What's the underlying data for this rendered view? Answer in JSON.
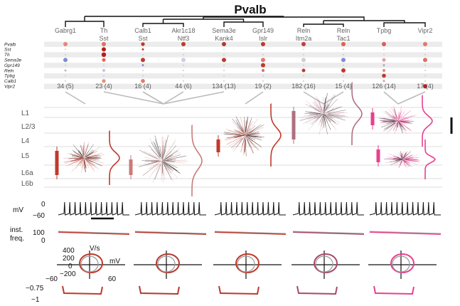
{
  "title": "Pvalb",
  "clusters": [
    {
      "l1": "Gabrg1",
      "l2": "",
      "count": "34 (5)",
      "color": "#d98880"
    },
    {
      "l1": "Th",
      "l2": "Sst",
      "count": "23 (4)",
      "color": "#c0392b"
    },
    {
      "l1": "Calb1",
      "l2": "Sst",
      "count": "16 (4)",
      "color": "#b03a2e"
    },
    {
      "l1": "Akr1c18",
      "l2": "Ntf3",
      "count": "44 (6)",
      "color": "#a93226"
    },
    {
      "l1": "Sema3e",
      "l2": "Kank4",
      "count": "134 (13)",
      "color": "#c0392b"
    },
    {
      "l1": "Gpr149",
      "l2": "Islr",
      "count": "19 (2)",
      "color": "#cb4335"
    },
    {
      "l1": "Reln",
      "l2": "Itm2a",
      "count": "182 (16)",
      "color": "#a84a6a"
    },
    {
      "l1": "Reln",
      "l2": "Tac1",
      "count": "15 (4)",
      "color": "#b5406e"
    },
    {
      "l1": "Tpbg",
      "l2": "",
      "count": "126 (14)",
      "color": "#d6337a"
    },
    {
      "l1": "Vipr2",
      "l2": "",
      "count": "17 (4)",
      "color": "#e8408f"
    }
  ],
  "genes": [
    "Pvalb",
    "Sst",
    "Th",
    "Sema3e",
    "Gpr149",
    "Reln",
    "Tpbg",
    "Calb1",
    "Vipr2"
  ],
  "layers": [
    "L1",
    "L2/3",
    "L4",
    "L5",
    "L6a",
    "L6b"
  ],
  "ephys": {
    "mv_label": "mV",
    "mv_ticks": [
      "0",
      "−60"
    ],
    "freq_label_1": "inst.",
    "freq_label_2": "freq.",
    "freq_tick": "100",
    "freq_tick2": "0",
    "phase_y_label": "V/s",
    "phase_y_ticks": [
      "400",
      "200",
      "0",
      "−200"
    ],
    "phase_x_label": "mV",
    "phase_x_ticks": [
      "−60",
      "60"
    ],
    "ap_ticks": [
      "−0.75",
      "−1"
    ]
  },
  "colors": {
    "red": "#c0392b",
    "pink": "#e8408f",
    "grey": "#aaaaaa",
    "row_bg": "#ececec"
  }
}
